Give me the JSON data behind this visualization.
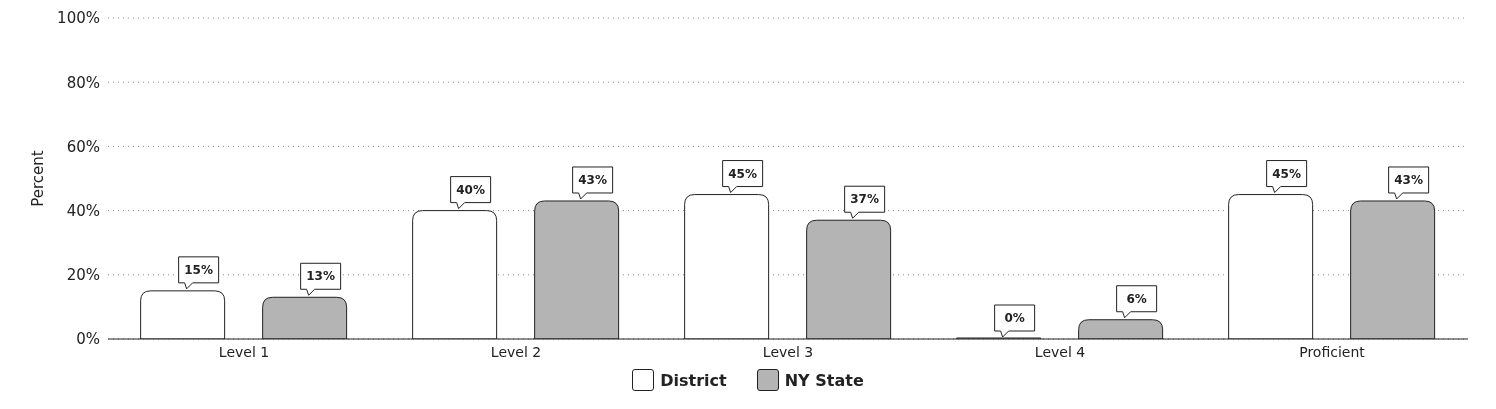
{
  "chart_data": {
    "type": "bar",
    "ylabel": "Percent",
    "categories": [
      "Level 1",
      "Level 2",
      "Level 3",
      "Level 4",
      "Proficient"
    ],
    "series": [
      {
        "name": "District",
        "color": "#ffffff",
        "values": [
          15,
          40,
          45,
          0,
          45
        ],
        "value_labels": [
          "15%",
          "40%",
          "45%",
          "0%",
          "45%"
        ]
      },
      {
        "name": "NY State",
        "color": "#b4b4b4",
        "values": [
          13,
          43,
          37,
          6,
          43
        ],
        "value_labels": [
          "13%",
          "43%",
          "37%",
          "6%",
          "43%"
        ]
      }
    ],
    "ylim": [
      0,
      100
    ],
    "yticks": [
      {
        "value": 0,
        "label": "0%"
      },
      {
        "value": 20,
        "label": "20%"
      },
      {
        "value": 40,
        "label": "40%"
      },
      {
        "value": 60,
        "label": "60%"
      },
      {
        "value": 80,
        "label": "80%"
      },
      {
        "value": 100,
        "label": "100%"
      }
    ],
    "grid": "y",
    "legend": "bottom"
  }
}
